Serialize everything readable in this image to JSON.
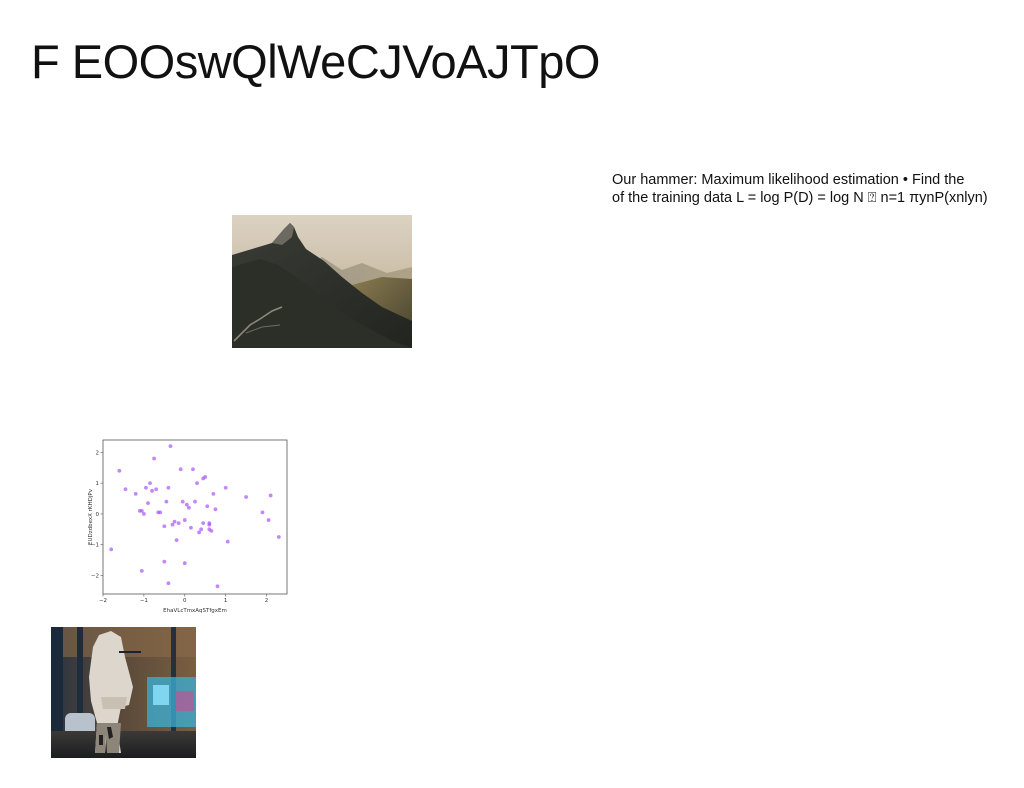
{
  "slide": {
    "title": "F EOOswQlWeCJVoAJTpO",
    "body_lines": [
      "Our hammer: Maximum likelihood estimation • Find the",
      "of the training data L = log P(D) = log N ⍰ n=1 πynP(xnlyn)"
    ]
  },
  "images": {
    "mountain": "mountain-photo",
    "street": "street-photo"
  },
  "chart_data": {
    "type": "scatter",
    "title": "",
    "xlabel": "EhaVLcTmxAqSTfgxEm",
    "ylabel": "EUDzdbexX rKHDjPv",
    "xlim": [
      -2,
      2.5
    ],
    "ylim": [
      -2.6,
      2.4
    ],
    "xticks": [
      "-2",
      "-1",
      "0",
      "1",
      "2"
    ],
    "yticks": [
      "-2",
      "-1",
      "0",
      "1",
      "2"
    ],
    "color": "#a855f7",
    "grid": false,
    "x": [
      -1.8,
      -1.6,
      -1.45,
      -1.2,
      -1.1,
      -1.05,
      -1.0,
      -0.95,
      -0.9,
      -0.85,
      -0.8,
      -0.75,
      -0.7,
      -0.65,
      -0.6,
      -0.5,
      -0.45,
      -0.4,
      -0.35,
      -0.3,
      -0.25,
      -0.2,
      -0.15,
      -0.1,
      -0.05,
      0.0,
      0.05,
      0.1,
      0.15,
      0.2,
      0.25,
      0.3,
      0.35,
      0.4,
      0.45,
      0.5,
      0.55,
      0.6,
      0.65,
      0.7,
      0.75,
      0.8,
      1.0,
      1.05,
      1.5,
      1.9,
      2.05,
      2.1,
      2.3,
      -1.05,
      -0.5,
      0.0,
      0.45,
      0.6,
      -0.4,
      0.6
    ],
    "y": [
      -1.15,
      1.4,
      0.8,
      0.65,
      0.1,
      -1.85,
      0.0,
      0.85,
      0.35,
      1.0,
      0.75,
      1.8,
      0.8,
      0.05,
      0.05,
      -0.4,
      0.4,
      0.85,
      2.2,
      -0.35,
      -0.25,
      -0.85,
      -0.3,
      1.45,
      0.4,
      -1.6,
      0.3,
      0.2,
      -0.45,
      1.45,
      0.4,
      1.0,
      -0.6,
      -0.5,
      -0.3,
      1.2,
      0.25,
      -0.3,
      -0.55,
      0.65,
      0.15,
      -2.35,
      0.85,
      -0.9,
      0.55,
      0.05,
      -0.2,
      0.6,
      -0.75,
      0.1,
      -1.55,
      -0.2,
      1.15,
      -0.35,
      -2.25,
      -0.5
    ]
  }
}
